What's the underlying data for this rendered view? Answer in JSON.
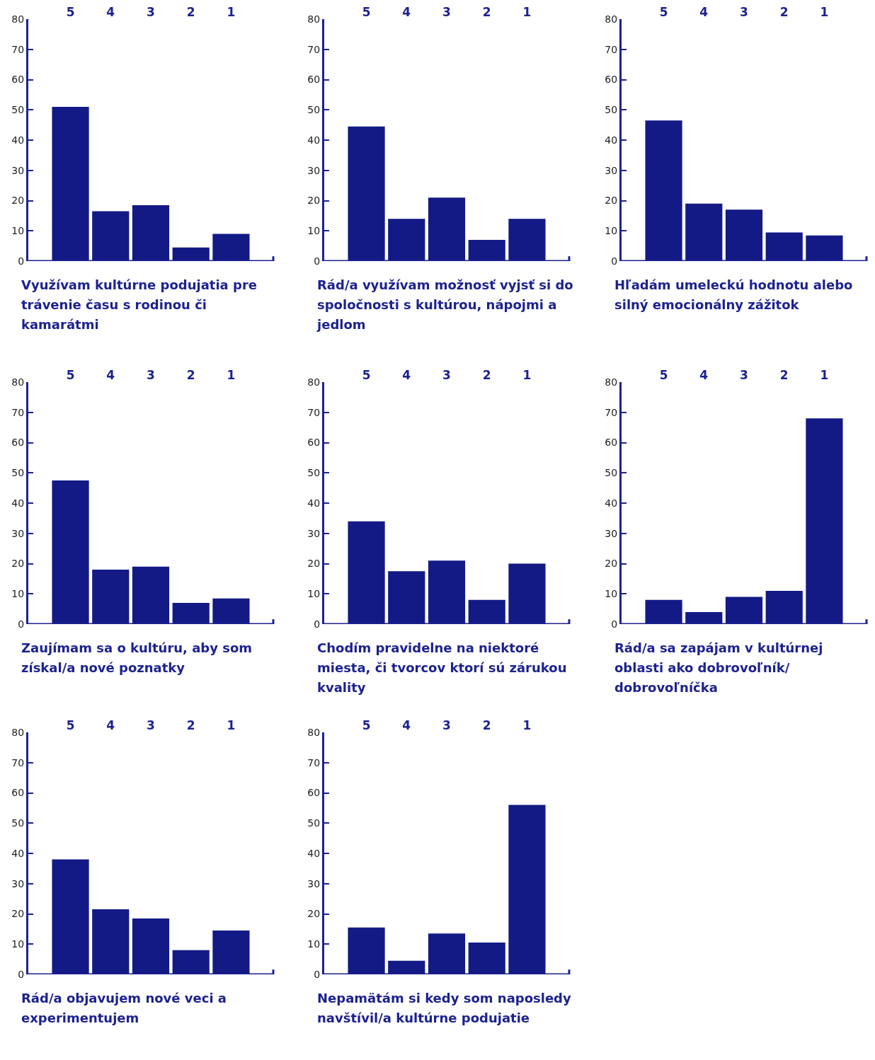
{
  "chart_data": [
    {
      "type": "bar",
      "title": "Využívam kultúrne podujatia pre trávenie času s rodinou či kamarátmi",
      "categories": [
        "5",
        "4",
        "3",
        "2",
        "1"
      ],
      "values": [
        51,
        16.5,
        18.5,
        4.5,
        9
      ],
      "color": "#131a85",
      "ylim": [
        0,
        80
      ],
      "yticks": [
        0,
        10,
        20,
        30,
        40,
        50,
        60,
        70,
        80
      ],
      "grid": false,
      "legend": false
    },
    {
      "type": "bar",
      "title": "Rád/a využívam možnosť vyjsť si do spoločnosti s kultúrou, nápojmi a jedlom",
      "categories": [
        "5",
        "4",
        "3",
        "2",
        "1"
      ],
      "values": [
        44.5,
        14,
        21,
        7,
        14
      ],
      "color": "#131a85",
      "ylim": [
        0,
        80
      ],
      "yticks": [
        0,
        10,
        20,
        30,
        40,
        50,
        60,
        70,
        80
      ],
      "grid": false,
      "legend": false
    },
    {
      "type": "bar",
      "title": "Hľadám umeleckú hodnotu alebo silný emocionálny zážitok",
      "categories": [
        "5",
        "4",
        "3",
        "2",
        "1"
      ],
      "values": [
        46.5,
        19,
        17,
        9.5,
        8.5
      ],
      "color": "#131a85",
      "ylim": [
        0,
        80
      ],
      "yticks": [
        0,
        10,
        20,
        30,
        40,
        50,
        60,
        70,
        80
      ],
      "grid": false,
      "legend": false
    },
    {
      "type": "bar",
      "title": "Zaujímam sa o kultúru, aby som získal/a nové poznatky",
      "categories": [
        "5",
        "4",
        "3",
        "2",
        "1"
      ],
      "values": [
        47.5,
        18,
        19,
        7,
        8.5
      ],
      "color": "#131a85",
      "ylim": [
        0,
        80
      ],
      "yticks": [
        0,
        10,
        20,
        30,
        40,
        50,
        60,
        70,
        80
      ],
      "grid": false,
      "legend": false
    },
    {
      "type": "bar",
      "title": "Chodím pravidelne na niektoré miesta, či tvorcov ktorí sú zárukou kvality",
      "categories": [
        "5",
        "4",
        "3",
        "2",
        "1"
      ],
      "values": [
        34,
        17.5,
        21,
        8,
        20
      ],
      "color": "#131a85",
      "ylim": [
        0,
        80
      ],
      "yticks": [
        0,
        10,
        20,
        30,
        40,
        50,
        60,
        70,
        80
      ],
      "grid": false,
      "legend": false
    },
    {
      "type": "bar",
      "title": "Rád/a sa zapájam v kultúrnej oblasti ako dobrovoľník/ dobrovoľníčka",
      "categories": [
        "5",
        "4",
        "3",
        "2",
        "1"
      ],
      "values": [
        8,
        4,
        9,
        11,
        68
      ],
      "color": "#131a85",
      "ylim": [
        0,
        80
      ],
      "yticks": [
        0,
        10,
        20,
        30,
        40,
        50,
        60,
        70,
        80
      ],
      "grid": false,
      "legend": false
    },
    {
      "type": "bar",
      "title": "Rád/a objavujem nové veci a experimentujem",
      "categories": [
        "5",
        "4",
        "3",
        "2",
        "1"
      ],
      "values": [
        38,
        21.5,
        18.5,
        8,
        14.5
      ],
      "color": "#131a85",
      "ylim": [
        0,
        80
      ],
      "yticks": [
        0,
        10,
        20,
        30,
        40,
        50,
        60,
        70,
        80
      ],
      "grid": false,
      "legend": false
    },
    {
      "type": "bar",
      "title": "Nepamätám si kedy som naposledy navštívil/a kultúrne podujatie",
      "categories": [
        "5",
        "4",
        "3",
        "2",
        "1"
      ],
      "values": [
        15.5,
        4.5,
        13.5,
        10.5,
        56
      ],
      "color": "#131a85",
      "ylim": [
        0,
        80
      ],
      "yticks": [
        0,
        10,
        20,
        30,
        40,
        50,
        60,
        70,
        80
      ],
      "grid": false,
      "legend": false
    }
  ]
}
